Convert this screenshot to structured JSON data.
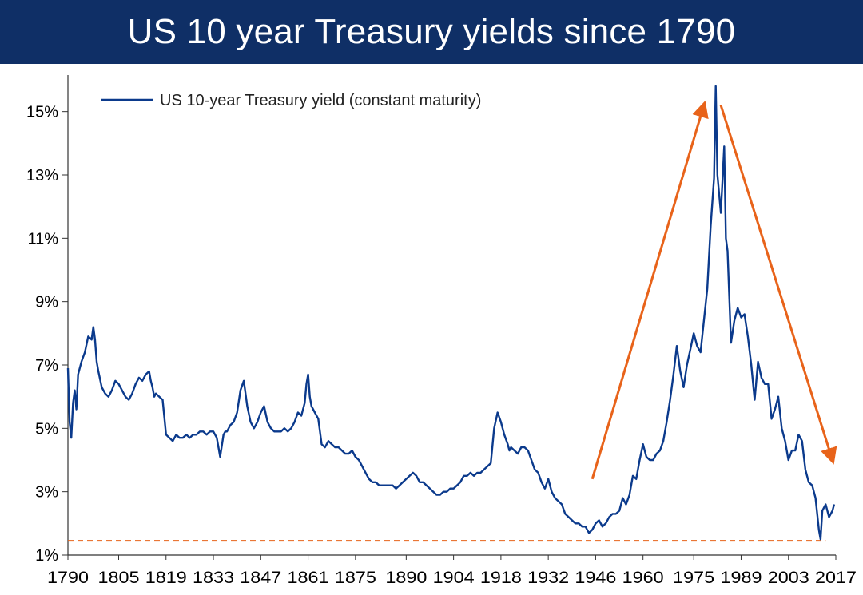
{
  "title": "US 10 year Treasury yields since 1790",
  "colors": {
    "title_bg": "#0f2f66",
    "title_text": "#ffffff",
    "series": "#0b3a8c",
    "annotation": "#e8631a",
    "axis": "#333333"
  },
  "chart_data": {
    "type": "line",
    "title": "US 10 year Treasury yields since 1790",
    "xlabel": "",
    "ylabel": "",
    "xlim": [
      1790,
      2017
    ],
    "ylim": [
      1,
      16
    ],
    "x_ticks": [
      1790,
      1805,
      1819,
      1833,
      1847,
      1861,
      1875,
      1890,
      1904,
      1918,
      1932,
      1946,
      1960,
      1975,
      1989,
      2003,
      2017
    ],
    "y_ticks": [
      1,
      3,
      5,
      7,
      9,
      11,
      13,
      15
    ],
    "y_tick_labels": [
      "1%",
      "3%",
      "5%",
      "7%",
      "9%",
      "11%",
      "13%",
      "15%"
    ],
    "grid": false,
    "legend_position": "top-left",
    "series": [
      {
        "name": "US 10-year Treasury yield (constant maturity)",
        "x": [
          1790,
          1790.5,
          1791,
          1791.5,
          1792,
          1792.5,
          1793,
          1794,
          1795,
          1796,
          1797,
          1797.5,
          1798,
          1798.5,
          1799,
          1800,
          1801,
          1802,
          1803,
          1804,
          1805,
          1806,
          1807,
          1808,
          1809,
          1810,
          1811,
          1812,
          1813,
          1814,
          1814.5,
          1815,
          1815.5,
          1816,
          1817,
          1818,
          1819,
          1820,
          1821,
          1822,
          1823,
          1824,
          1825,
          1826,
          1827,
          1828,
          1829,
          1830,
          1831,
          1832,
          1833,
          1834,
          1835,
          1836,
          1836.5,
          1837,
          1838,
          1839,
          1840,
          1841,
          1842,
          1843,
          1844,
          1845,
          1846,
          1847,
          1848,
          1849,
          1850,
          1851,
          1852,
          1853,
          1854,
          1855,
          1856,
          1857,
          1858,
          1859,
          1860,
          1860.5,
          1861,
          1861.5,
          1862,
          1863,
          1864,
          1865,
          1866,
          1867,
          1868,
          1869,
          1870,
          1871,
          1872,
          1873,
          1874,
          1875,
          1876,
          1877,
          1878,
          1879,
          1880,
          1881,
          1882,
          1883,
          1884,
          1885,
          1886,
          1887,
          1888,
          1889,
          1890,
          1891,
          1892,
          1893,
          1894,
          1895,
          1896,
          1897,
          1898,
          1899,
          1900,
          1901,
          1902,
          1903,
          1904,
          1905,
          1906,
          1907,
          1908,
          1909,
          1910,
          1911,
          1912,
          1913,
          1914,
          1915,
          1916,
          1917,
          1918,
          1919,
          1920,
          1920.5,
          1921,
          1922,
          1923,
          1924,
          1925,
          1926,
          1927,
          1928,
          1929,
          1930,
          1931,
          1932,
          1933,
          1934,
          1935,
          1936,
          1937,
          1938,
          1939,
          1940,
          1941,
          1942,
          1943,
          1944,
          1945,
          1946,
          1947,
          1948,
          1949,
          1950,
          1951,
          1952,
          1953,
          1954,
          1955,
          1956,
          1957,
          1958,
          1959,
          1960,
          1961,
          1962,
          1963,
          1964,
          1965,
          1966,
          1967,
          1968,
          1969,
          1970,
          1971,
          1972,
          1973,
          1974,
          1975,
          1976,
          1977,
          1978,
          1979,
          1980,
          1981,
          1981.5,
          1982,
          1983,
          1984,
          1984.5,
          1985,
          1986,
          1987,
          1988,
          1989,
          1990,
          1991,
          1992,
          1993,
          1994,
          1995,
          1996,
          1997,
          1998,
          1999,
          2000,
          2001,
          2002,
          2003,
          2004,
          2005,
          2006,
          2007,
          2008,
          2009,
          2010,
          2011,
          2012,
          2012.5,
          2013,
          2014,
          2015,
          2016,
          2016.5
        ],
        "values": [
          6.9,
          5.2,
          4.7,
          5.8,
          6.2,
          5.6,
          6.7,
          7.1,
          7.4,
          7.9,
          7.8,
          8.2,
          7.8,
          7.1,
          6.8,
          6.3,
          6.1,
          6.0,
          6.2,
          6.5,
          6.4,
          6.2,
          6.0,
          5.9,
          6.1,
          6.4,
          6.6,
          6.5,
          6.7,
          6.8,
          6.5,
          6.3,
          6.0,
          6.1,
          6.0,
          5.9,
          4.8,
          4.7,
          4.6,
          4.8,
          4.7,
          4.7,
          4.8,
          4.7,
          4.8,
          4.8,
          4.9,
          4.9,
          4.8,
          4.9,
          4.9,
          4.7,
          4.1,
          4.8,
          4.9,
          4.9,
          5.1,
          5.2,
          5.5,
          6.2,
          6.5,
          5.7,
          5.2,
          5.0,
          5.2,
          5.5,
          5.7,
          5.2,
          5.0,
          4.9,
          4.9,
          4.9,
          5.0,
          4.9,
          5.0,
          5.2,
          5.5,
          5.4,
          5.8,
          6.4,
          6.7,
          6.0,
          5.7,
          5.5,
          5.3,
          4.5,
          4.4,
          4.6,
          4.5,
          4.4,
          4.4,
          4.3,
          4.2,
          4.2,
          4.3,
          4.1,
          4.0,
          3.8,
          3.6,
          3.4,
          3.3,
          3.3,
          3.2,
          3.2,
          3.2,
          3.2,
          3.2,
          3.1,
          3.2,
          3.3,
          3.4,
          3.5,
          3.6,
          3.5,
          3.3,
          3.3,
          3.2,
          3.1,
          3.0,
          2.9,
          2.9,
          3.0,
          3.0,
          3.1,
          3.1,
          3.2,
          3.3,
          3.5,
          3.5,
          3.6,
          3.5,
          3.6,
          3.6,
          3.7,
          3.8,
          3.9,
          5.0,
          5.5,
          5.2,
          4.8,
          4.5,
          4.3,
          4.4,
          4.3,
          4.2,
          4.4,
          4.4,
          4.3,
          4.0,
          3.7,
          3.6,
          3.3,
          3.1,
          3.4,
          3.0,
          2.8,
          2.7,
          2.6,
          2.3,
          2.2,
          2.1,
          2.0,
          2.0,
          1.9,
          1.9,
          1.7,
          1.8,
          2.0,
          2.1,
          1.9,
          2.0,
          2.2,
          2.3,
          2.3,
          2.4,
          2.8,
          2.6,
          2.9,
          3.5,
          3.4,
          4.0,
          4.5,
          4.1,
          4.0,
          4.0,
          4.2,
          4.3,
          4.6,
          5.2,
          5.9,
          6.7,
          7.6,
          6.8,
          6.3,
          7.0,
          7.5,
          8.0,
          7.6,
          7.4,
          8.4,
          9.4,
          11.4,
          12.9,
          15.8,
          13.0,
          11.8,
          13.9,
          11.0,
          10.6,
          7.7,
          8.4,
          8.8,
          8.5,
          8.6,
          7.9,
          7.0,
          5.9,
          7.1,
          6.6,
          6.4,
          6.4,
          5.3,
          5.6,
          6.0,
          5.0,
          4.6,
          4.0,
          4.3,
          4.3,
          4.8,
          4.6,
          3.7,
          3.3,
          3.2,
          2.8,
          1.8,
          1.5,
          2.4,
          2.6,
          2.2,
          2.4,
          2.6
        ]
      }
    ],
    "annotations": [
      {
        "type": "arrow",
        "direction": "up",
        "from": [
          1945,
          3.4
        ],
        "to": [
          1978,
          15.2
        ]
      },
      {
        "type": "arrow",
        "direction": "down",
        "from": [
          1983,
          15.2
        ],
        "to": [
          2016,
          4.0
        ]
      },
      {
        "type": "dashed-line",
        "y": 1.45,
        "x_range": [
          1790,
          2014
        ]
      }
    ]
  }
}
